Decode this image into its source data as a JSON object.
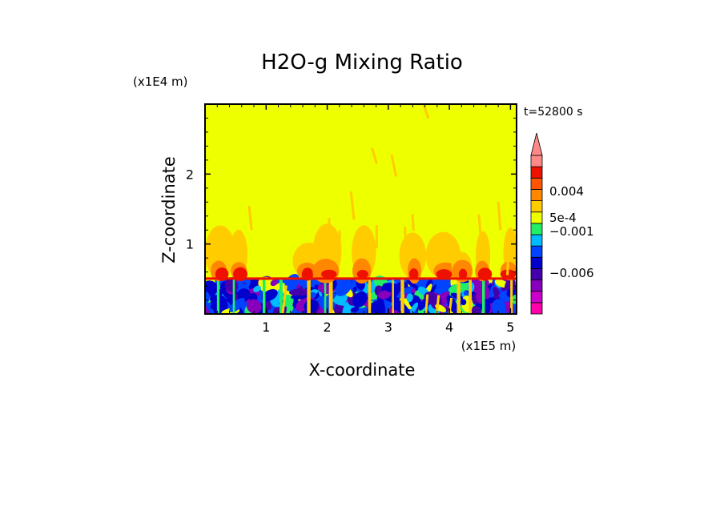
{
  "chart_data": {
    "type": "heatmap",
    "title": "H2O-g Mixing Ratio",
    "xlabel": "X-coordinate",
    "ylabel": "Z-coordinate",
    "x_unit": "(x1E5 m)",
    "y_unit": "(x1E4 m)",
    "time_label": "t=52800  s",
    "xlim": [
      0,
      5.1
    ],
    "ylim": [
      0,
      3.0
    ],
    "xticks": [
      "1",
      "2",
      "3",
      "4",
      "5"
    ],
    "xtick_values": [
      1,
      2,
      3,
      4,
      5
    ],
    "yticks": [
      "1",
      "2"
    ],
    "ytick_values": [
      1,
      2
    ],
    "background_value_color": "#eeff00",
    "boundary_layer_top": 0.5,
    "colorbar": {
      "levels": [
        {
          "color": "#ff00aa"
        },
        {
          "color": "#cc00cc"
        },
        {
          "color": "#8800bb"
        },
        {
          "color": "#4400aa"
        },
        {
          "color": "#0000cc"
        },
        {
          "color": "#0044ff"
        },
        {
          "color": "#00bbff"
        },
        {
          "color": "#22ee66"
        },
        {
          "color": "#eeff00"
        },
        {
          "color": "#ffcc00"
        },
        {
          "color": "#ff8800"
        },
        {
          "color": "#ff5500"
        },
        {
          "color": "#ee1100"
        },
        {
          "color": "#ff8888"
        }
      ],
      "labels": [
        "0.004",
        "5e-4",
        "−0.001",
        "−0.006"
      ]
    }
  }
}
